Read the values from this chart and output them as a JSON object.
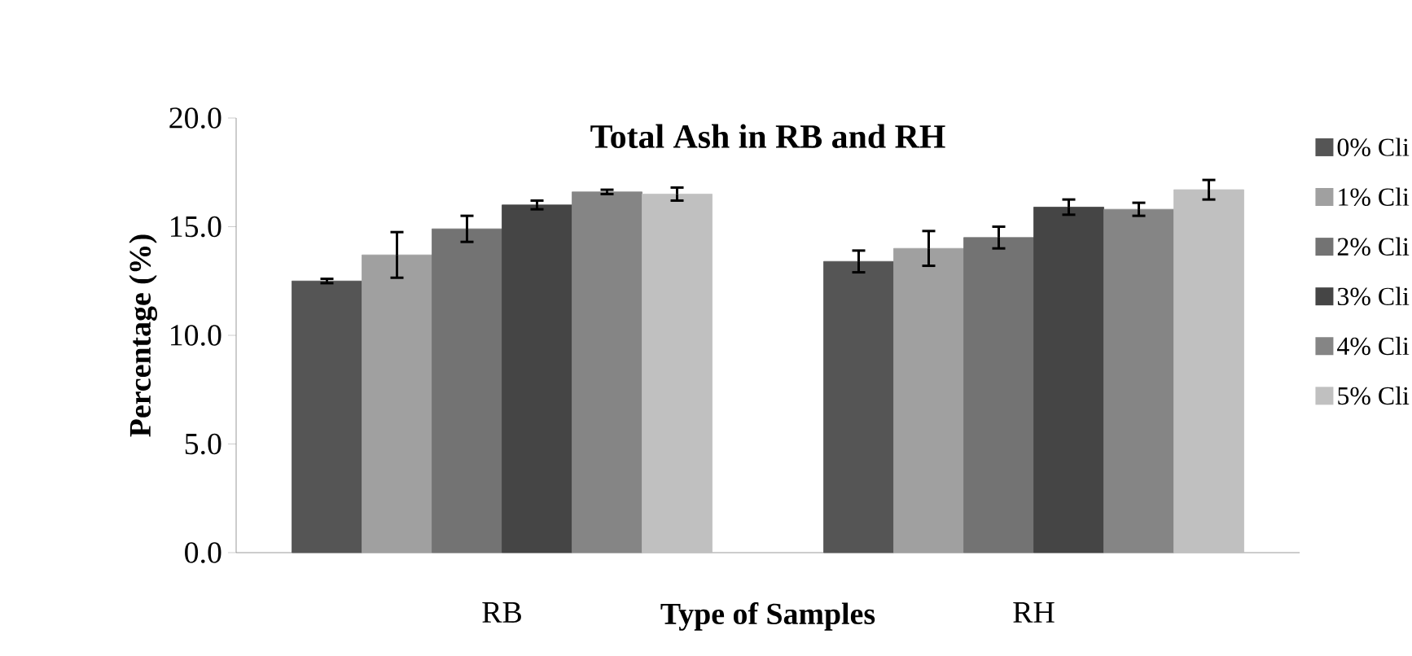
{
  "chart_data": {
    "type": "bar",
    "title": "Total Ash in RB and RH",
    "xlabel": "Type of Samples",
    "ylabel": "Percentage (%)",
    "categories": [
      "RB",
      "RH"
    ],
    "series": [
      {
        "name": "0% Cli",
        "color": "#555555",
        "values": [
          12.5,
          13.4
        ],
        "errors": [
          0.1,
          0.5
        ]
      },
      {
        "name": "1% Cli",
        "color": "#a0a0a0",
        "values": [
          13.7,
          14.0
        ],
        "errors": [
          1.05,
          0.8
        ]
      },
      {
        "name": "2% Cli",
        "color": "#737373",
        "values": [
          14.9,
          14.5
        ],
        "errors": [
          0.6,
          0.5
        ]
      },
      {
        "name": "3% Cli",
        "color": "#454545",
        "values": [
          16.0,
          15.9
        ],
        "errors": [
          0.2,
          0.35
        ]
      },
      {
        "name": "4% Cli",
        "color": "#858585",
        "values": [
          16.6,
          15.8
        ],
        "errors": [
          0.1,
          0.3
        ]
      },
      {
        "name": "5% Cli",
        "color": "#c0c0c0",
        "values": [
          16.5,
          16.7
        ],
        "errors": [
          0.3,
          0.45
        ]
      }
    ],
    "ylim": [
      0,
      20
    ],
    "yticks": [
      {
        "value": 0,
        "label": "0.0"
      },
      {
        "value": 5,
        "label": "5.0"
      },
      {
        "value": 10,
        "label": "10.0"
      },
      {
        "value": 15,
        "label": "15.0"
      },
      {
        "value": 20,
        "label": "20.0"
      }
    ],
    "grid": false,
    "legend": "right"
  }
}
